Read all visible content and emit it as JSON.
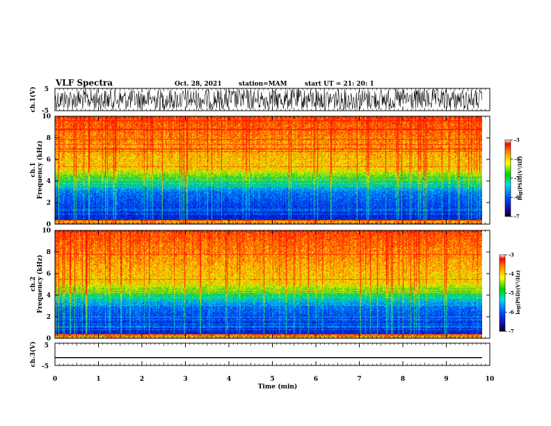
{
  "header": {
    "title": "VLF Spectra",
    "date": "Oct. 28, 2021",
    "station": "station=MAM",
    "start": "start  UT  =   21: 20: 1"
  },
  "chart_data": [
    {
      "id": "ch1-waveform",
      "type": "line",
      "ylabel": "ch.1(V)",
      "yticks": [
        "5",
        "-5"
      ],
      "ylim": [
        -5,
        5
      ],
      "xlim": [
        0,
        10
      ],
      "data_end_min": 9.83,
      "description_style": "dense noise signal"
    },
    {
      "id": "ch1-spectrogram",
      "type": "heatmap",
      "ylabel": "ch.1",
      "ylabel2": "Frequency (kHz)",
      "yticks": [
        "0",
        "2",
        "4",
        "6",
        "8",
        "10"
      ],
      "ylim": [
        0,
        10
      ],
      "xlim": [
        0,
        10
      ],
      "colorbar": {
        "label": "log(PSD)(V²/Hz)",
        "ticks": [
          "-3",
          "-4",
          "-5",
          "-6",
          "-7"
        ],
        "range": [
          -7,
          -3
        ]
      }
    },
    {
      "id": "ch2-spectrogram",
      "type": "heatmap",
      "ylabel": "ch.2",
      "ylabel2": "Frequency (kHz)",
      "yticks": [
        "0",
        "2",
        "4",
        "6",
        "8",
        "10"
      ],
      "ylim": [
        0,
        10
      ],
      "xlim": [
        0,
        10
      ],
      "colorbar": {
        "label": "log(PSD)(V²/Hz)",
        "ticks": [
          "-3",
          "-4",
          "-5",
          "-6",
          "-7"
        ],
        "range": [
          -7,
          -3
        ]
      }
    },
    {
      "id": "ch3-waveform",
      "type": "line",
      "ylabel": "ch.3(V)",
      "yticks": [
        "5",
        "-5"
      ],
      "ylim": [
        -5,
        5
      ],
      "xlim": [
        0,
        10
      ],
      "constant_value": -1.5
    }
  ],
  "xaxis": {
    "label": "Time  (min)",
    "ticks": [
      "0",
      "1",
      "2",
      "3",
      "4",
      "5",
      "6",
      "7",
      "8",
      "9",
      "10"
    ]
  }
}
